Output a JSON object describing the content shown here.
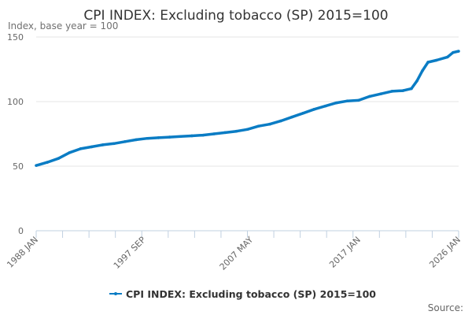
{
  "chart_data": {
    "type": "line",
    "title": "CPI INDEX: Excluding tobacco (SP) 2015=100",
    "ylabel": "Index, base year = 100",
    "xlabel": "",
    "ylim": [
      0,
      150
    ],
    "xlim": [
      1988.0,
      2026.0
    ],
    "yticks": [
      0,
      50,
      100,
      150
    ],
    "xtick_labels": [
      {
        "x": 1988.0,
        "label": "1988 JAN"
      },
      {
        "x": 1997.67,
        "label": "1997 SEP"
      },
      {
        "x": 2007.33,
        "label": "2007 MAY"
      },
      {
        "x": 2017.0,
        "label": "2017 JAN"
      },
      {
        "x": 2026.0,
        "label": "2026 JAN"
      }
    ],
    "grid": true,
    "legend_position": "bottom",
    "series": [
      {
        "name": "CPI INDEX: Excluding tobacco (SP) 2015=100",
        "color": "#0a7cc4",
        "x": [
          1988,
          1989,
          1990,
          1991,
          1992,
          1993,
          1994,
          1995,
          1996,
          1997,
          1998,
          1999,
          2000,
          2001,
          2002,
          2003,
          2004,
          2005,
          2006,
          2007,
          2008,
          2009,
          2010,
          2011,
          2012,
          2013,
          2014,
          2015,
          2016,
          2017,
          2018,
          2019,
          2020,
          2021,
          2021.75,
          2022.25,
          2022.75,
          2023.25,
          2024,
          2025,
          2025.5,
          2026
        ],
        "y": [
          50.5,
          53,
          56,
          60.5,
          63.5,
          65,
          66.5,
          67.5,
          69,
          70.5,
          71.5,
          72,
          72.5,
          73,
          73.5,
          74,
          75,
          76,
          77,
          78.5,
          81,
          82.5,
          85,
          88,
          91,
          94,
          96.5,
          99,
          100.5,
          101,
          104,
          106,
          108,
          108.5,
          110,
          116,
          124,
          130.5,
          132,
          134.5,
          138,
          139
        ]
      }
    ]
  },
  "source_label": "Source:"
}
